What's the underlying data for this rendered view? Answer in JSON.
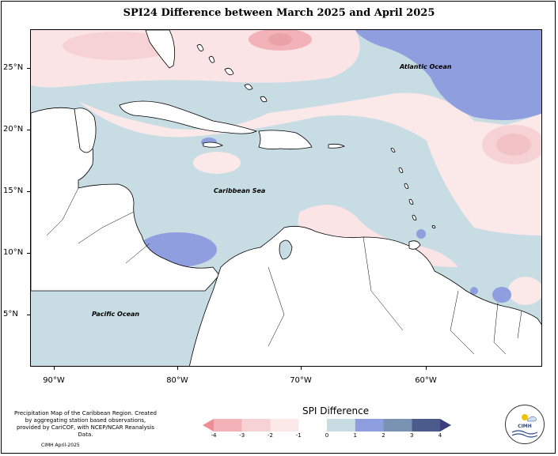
{
  "title": "SPI24 Difference between March 2025 and April 2025",
  "y_ticks": [
    "25°N",
    "20°N",
    "15°N",
    "10°N",
    "5°N"
  ],
  "x_ticks": [
    "90°W",
    "80°W",
    "70°W",
    "60°W"
  ],
  "labels": {
    "atlantic": "Atlantic Ocean",
    "caribbean": "Caribbean Sea",
    "pacific": "Pacific Ocean"
  },
  "footer": {
    "note": "Precipitation Map of the Caribbean Region. Created by aggregating station based observations, provided by CariCOF, with NCEP/NCAR Reanalysis Data.",
    "credit": "CIMH April-2025"
  },
  "legend": {
    "title": "SPI Difference",
    "labels": [
      "-4",
      "-3",
      "-2",
      "-1",
      "0",
      "1",
      "2",
      "3",
      "4"
    ],
    "colors": [
      "#f08c93",
      "#f3b2b7",
      "#f7d2d5",
      "#fbe9ea",
      "#ffffff",
      "#c7dce3",
      "#8f9ede",
      "#7b93b3",
      "#4b5b8c",
      "#3b3f80"
    ]
  },
  "logo": {
    "text": "CIMH"
  }
}
